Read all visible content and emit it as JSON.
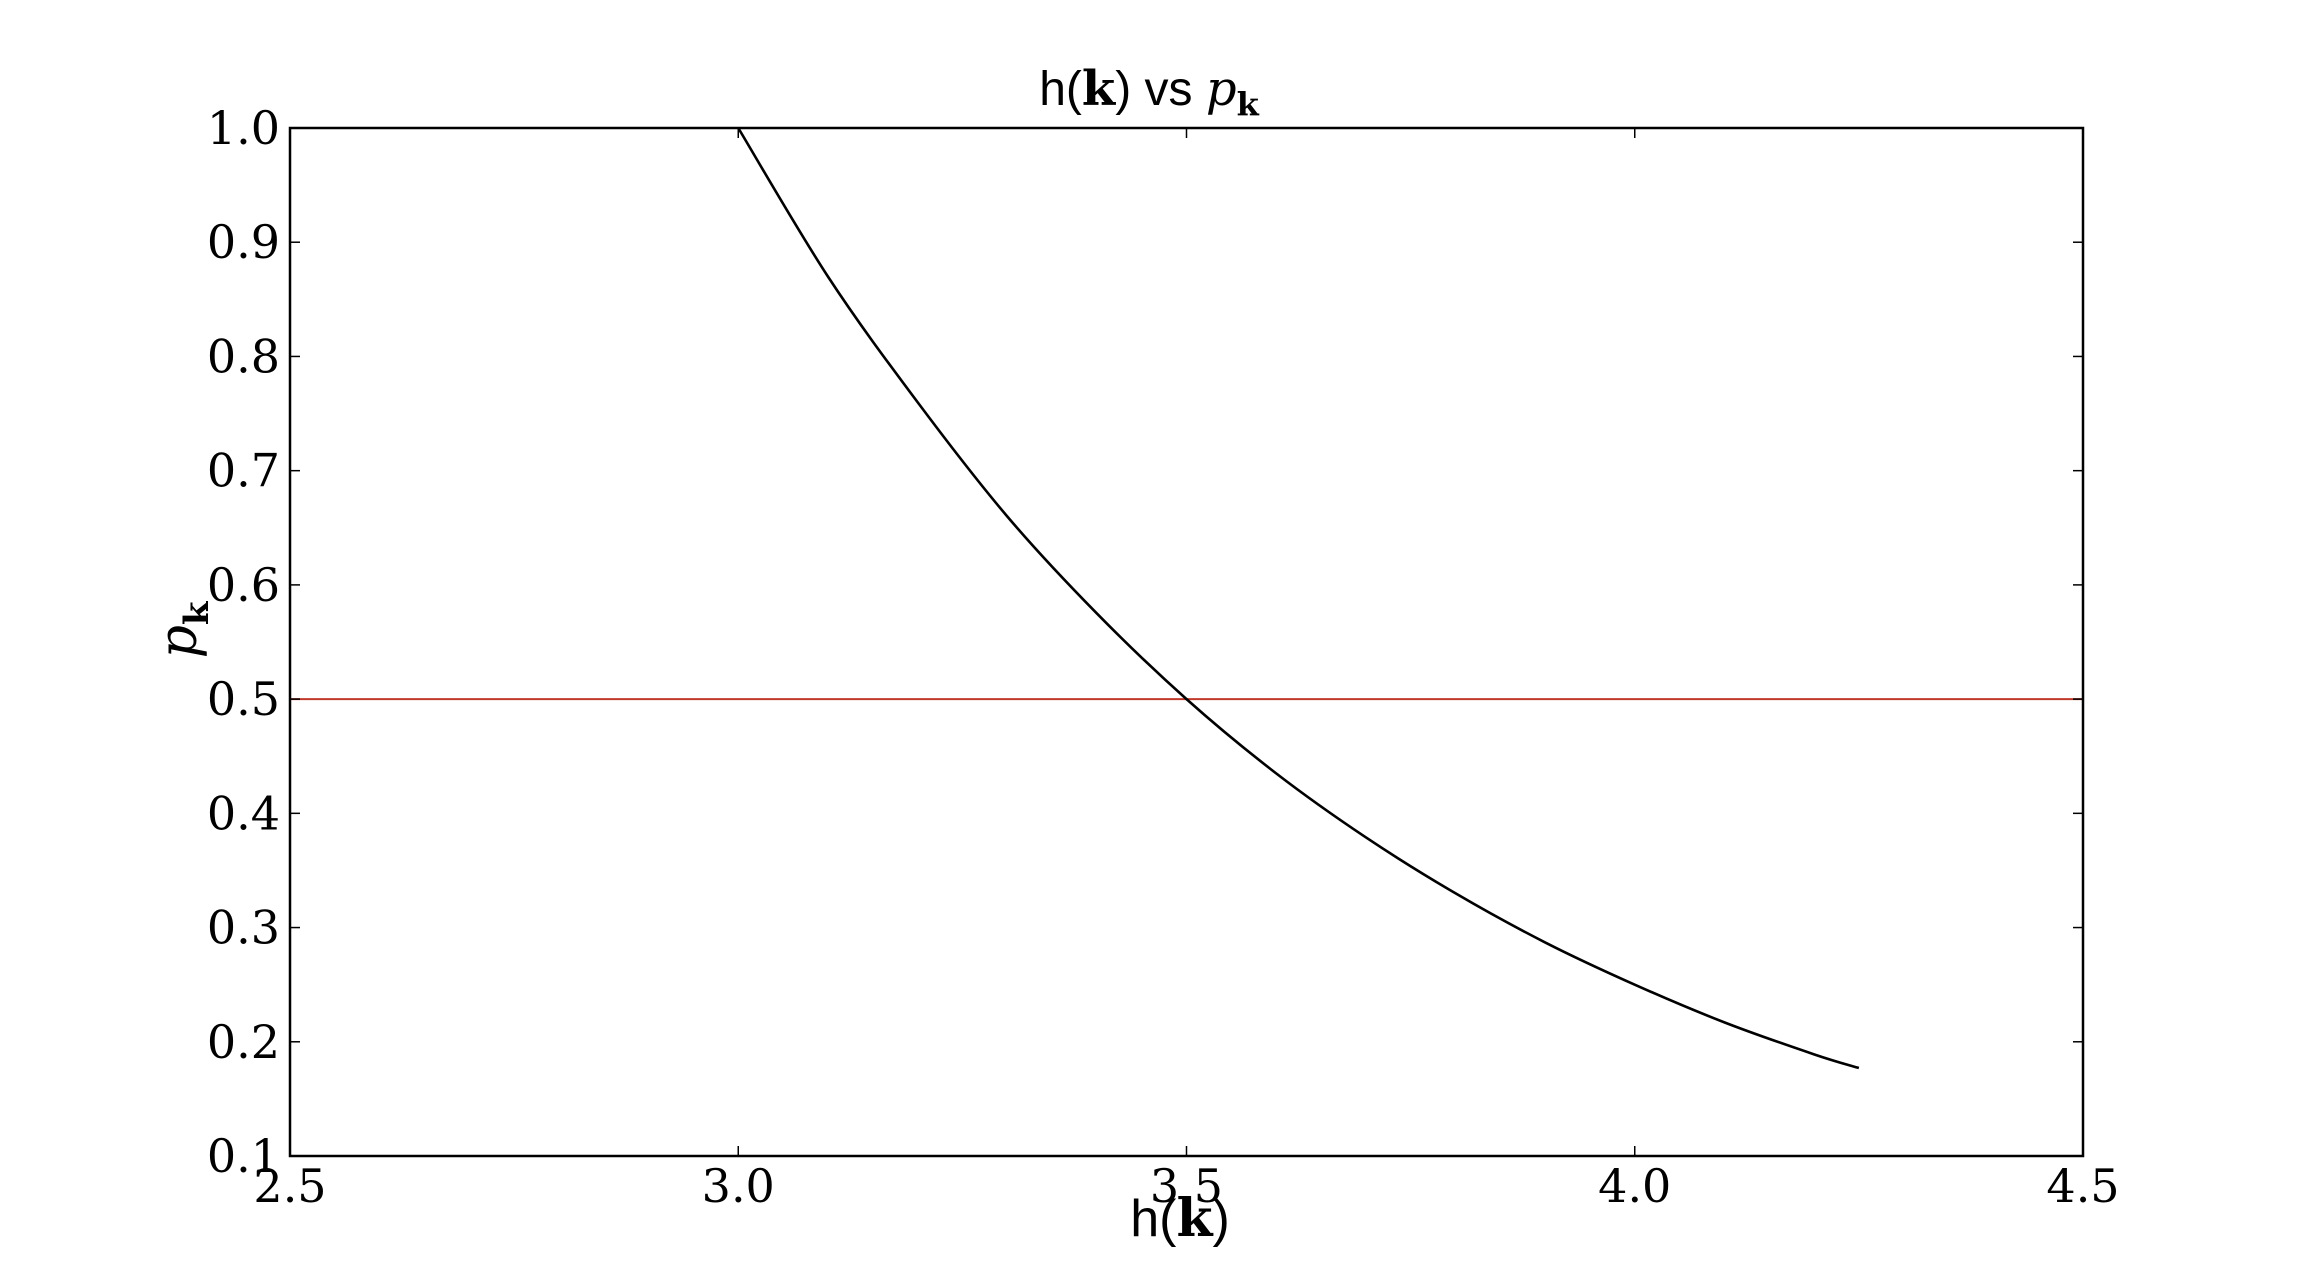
{
  "chart_data": {
    "type": "line",
    "title": "h(k) vs p_k",
    "title_parts": {
      "prefix": "h(",
      "bold": "k",
      "middle": ") vs ",
      "var": "p",
      "sub": "k"
    },
    "xlabel": "h(k)",
    "xlabel_parts": {
      "prefix": "h(",
      "bold": "k",
      "suffix": ")"
    },
    "ylabel": "p_k",
    "ylabel_parts": {
      "var": "p",
      "sub": "k"
    },
    "xlim": [
      2.5,
      4.5
    ],
    "ylim": [
      0.1,
      1.0
    ],
    "xticks": [
      2.5,
      3.0,
      3.5,
      4.0,
      4.5
    ],
    "xtick_labels": [
      "2.5",
      "3.0",
      "3.5",
      "4.0",
      "4.5"
    ],
    "yticks": [
      0.1,
      0.2,
      0.3,
      0.4,
      0.5,
      0.6,
      0.7,
      0.8,
      0.9,
      1.0
    ],
    "ytick_labels": [
      "0.1",
      "0.2",
      "0.3",
      "0.4",
      "0.5",
      "0.6",
      "0.7",
      "0.8",
      "0.9",
      "1.0"
    ],
    "grid": false,
    "legend": "none",
    "series": [
      {
        "color": "#000000",
        "x": [
          3.0,
          3.1,
          3.2,
          3.3,
          3.4,
          3.5,
          3.6,
          3.7,
          3.8,
          3.9,
          4.0,
          4.1,
          4.2,
          4.25
        ],
        "y": [
          1.0,
          0.87,
          0.76,
          0.66,
          0.575,
          0.5,
          0.435,
          0.379,
          0.33,
          0.287,
          0.25,
          0.217,
          0.189,
          0.177
        ]
      }
    ],
    "reference_lines": [
      {
        "orientation": "horizontal",
        "y": 0.5,
        "color": "#c0392b"
      }
    ]
  }
}
